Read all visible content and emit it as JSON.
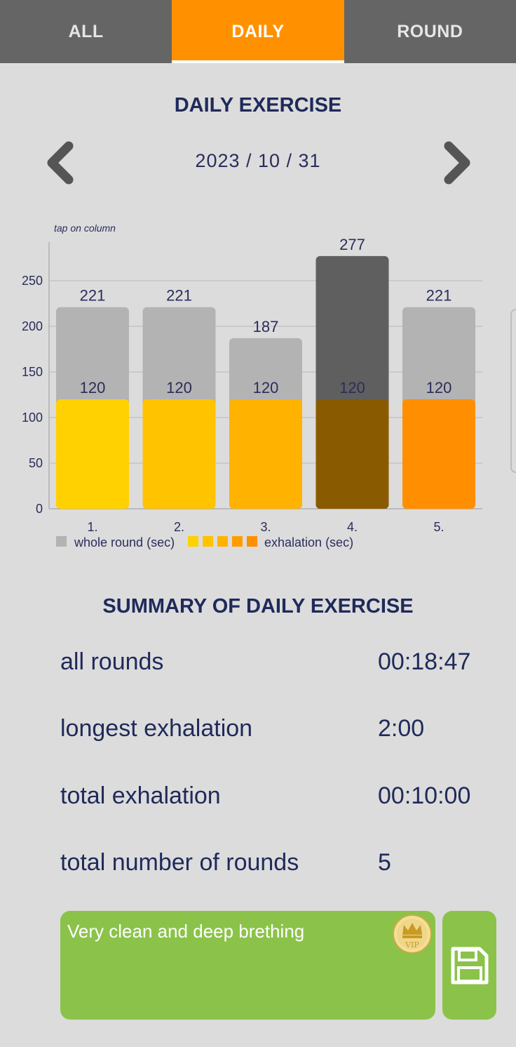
{
  "tabs": [
    {
      "label": "ALL",
      "active": false
    },
    {
      "label": "DAILY",
      "active": true
    },
    {
      "label": "ROUND",
      "active": false
    }
  ],
  "header": {
    "title": "DAILY EXERCISE",
    "date": "2023 / 10 / 31"
  },
  "chart_hint": "tap on column",
  "chart_data": {
    "type": "bar",
    "categories": [
      "1.",
      "2.",
      "3.",
      "4.",
      "5."
    ],
    "series": [
      {
        "name": "whole round (sec)",
        "values": [
          221,
          221,
          187,
          277,
          221
        ]
      },
      {
        "name": "exhalation (sec)",
        "values": [
          120,
          120,
          120,
          120,
          120
        ]
      }
    ],
    "overlay": true,
    "selected_index": 3,
    "yticks": [
      0,
      50,
      100,
      150,
      200,
      250
    ],
    "ylim": [
      0,
      290
    ],
    "grid": true,
    "legend": "bottom",
    "colors": {
      "whole": "#b3b3b3",
      "whole_selected": "#5f5f5f",
      "exhalation": [
        "#ffd100",
        "#ffc300",
        "#ffb300",
        "#8a5a00",
        "#ff8f00"
      ]
    }
  },
  "summary": {
    "title": "SUMMARY OF DAILY EXERCISE",
    "rows": [
      {
        "label": "all rounds",
        "value": "00:18:47"
      },
      {
        "label": "longest exhalation",
        "value": "2:00"
      },
      {
        "label": "total exhalation",
        "value": "00:10:00"
      },
      {
        "label": "total number of rounds",
        "value": "5"
      }
    ]
  },
  "note": {
    "text": "Very clean and deep brething",
    "badge": "VIP"
  },
  "icons": [
    "chevron-left-icon",
    "chevron-right-icon",
    "vip-crown-icon",
    "save-icon"
  ],
  "colors": {
    "tab_bg": "#656565",
    "tab_active": "#ff9100",
    "accent_green": "#8bc34a",
    "text_navy": "#1f2a5a"
  }
}
